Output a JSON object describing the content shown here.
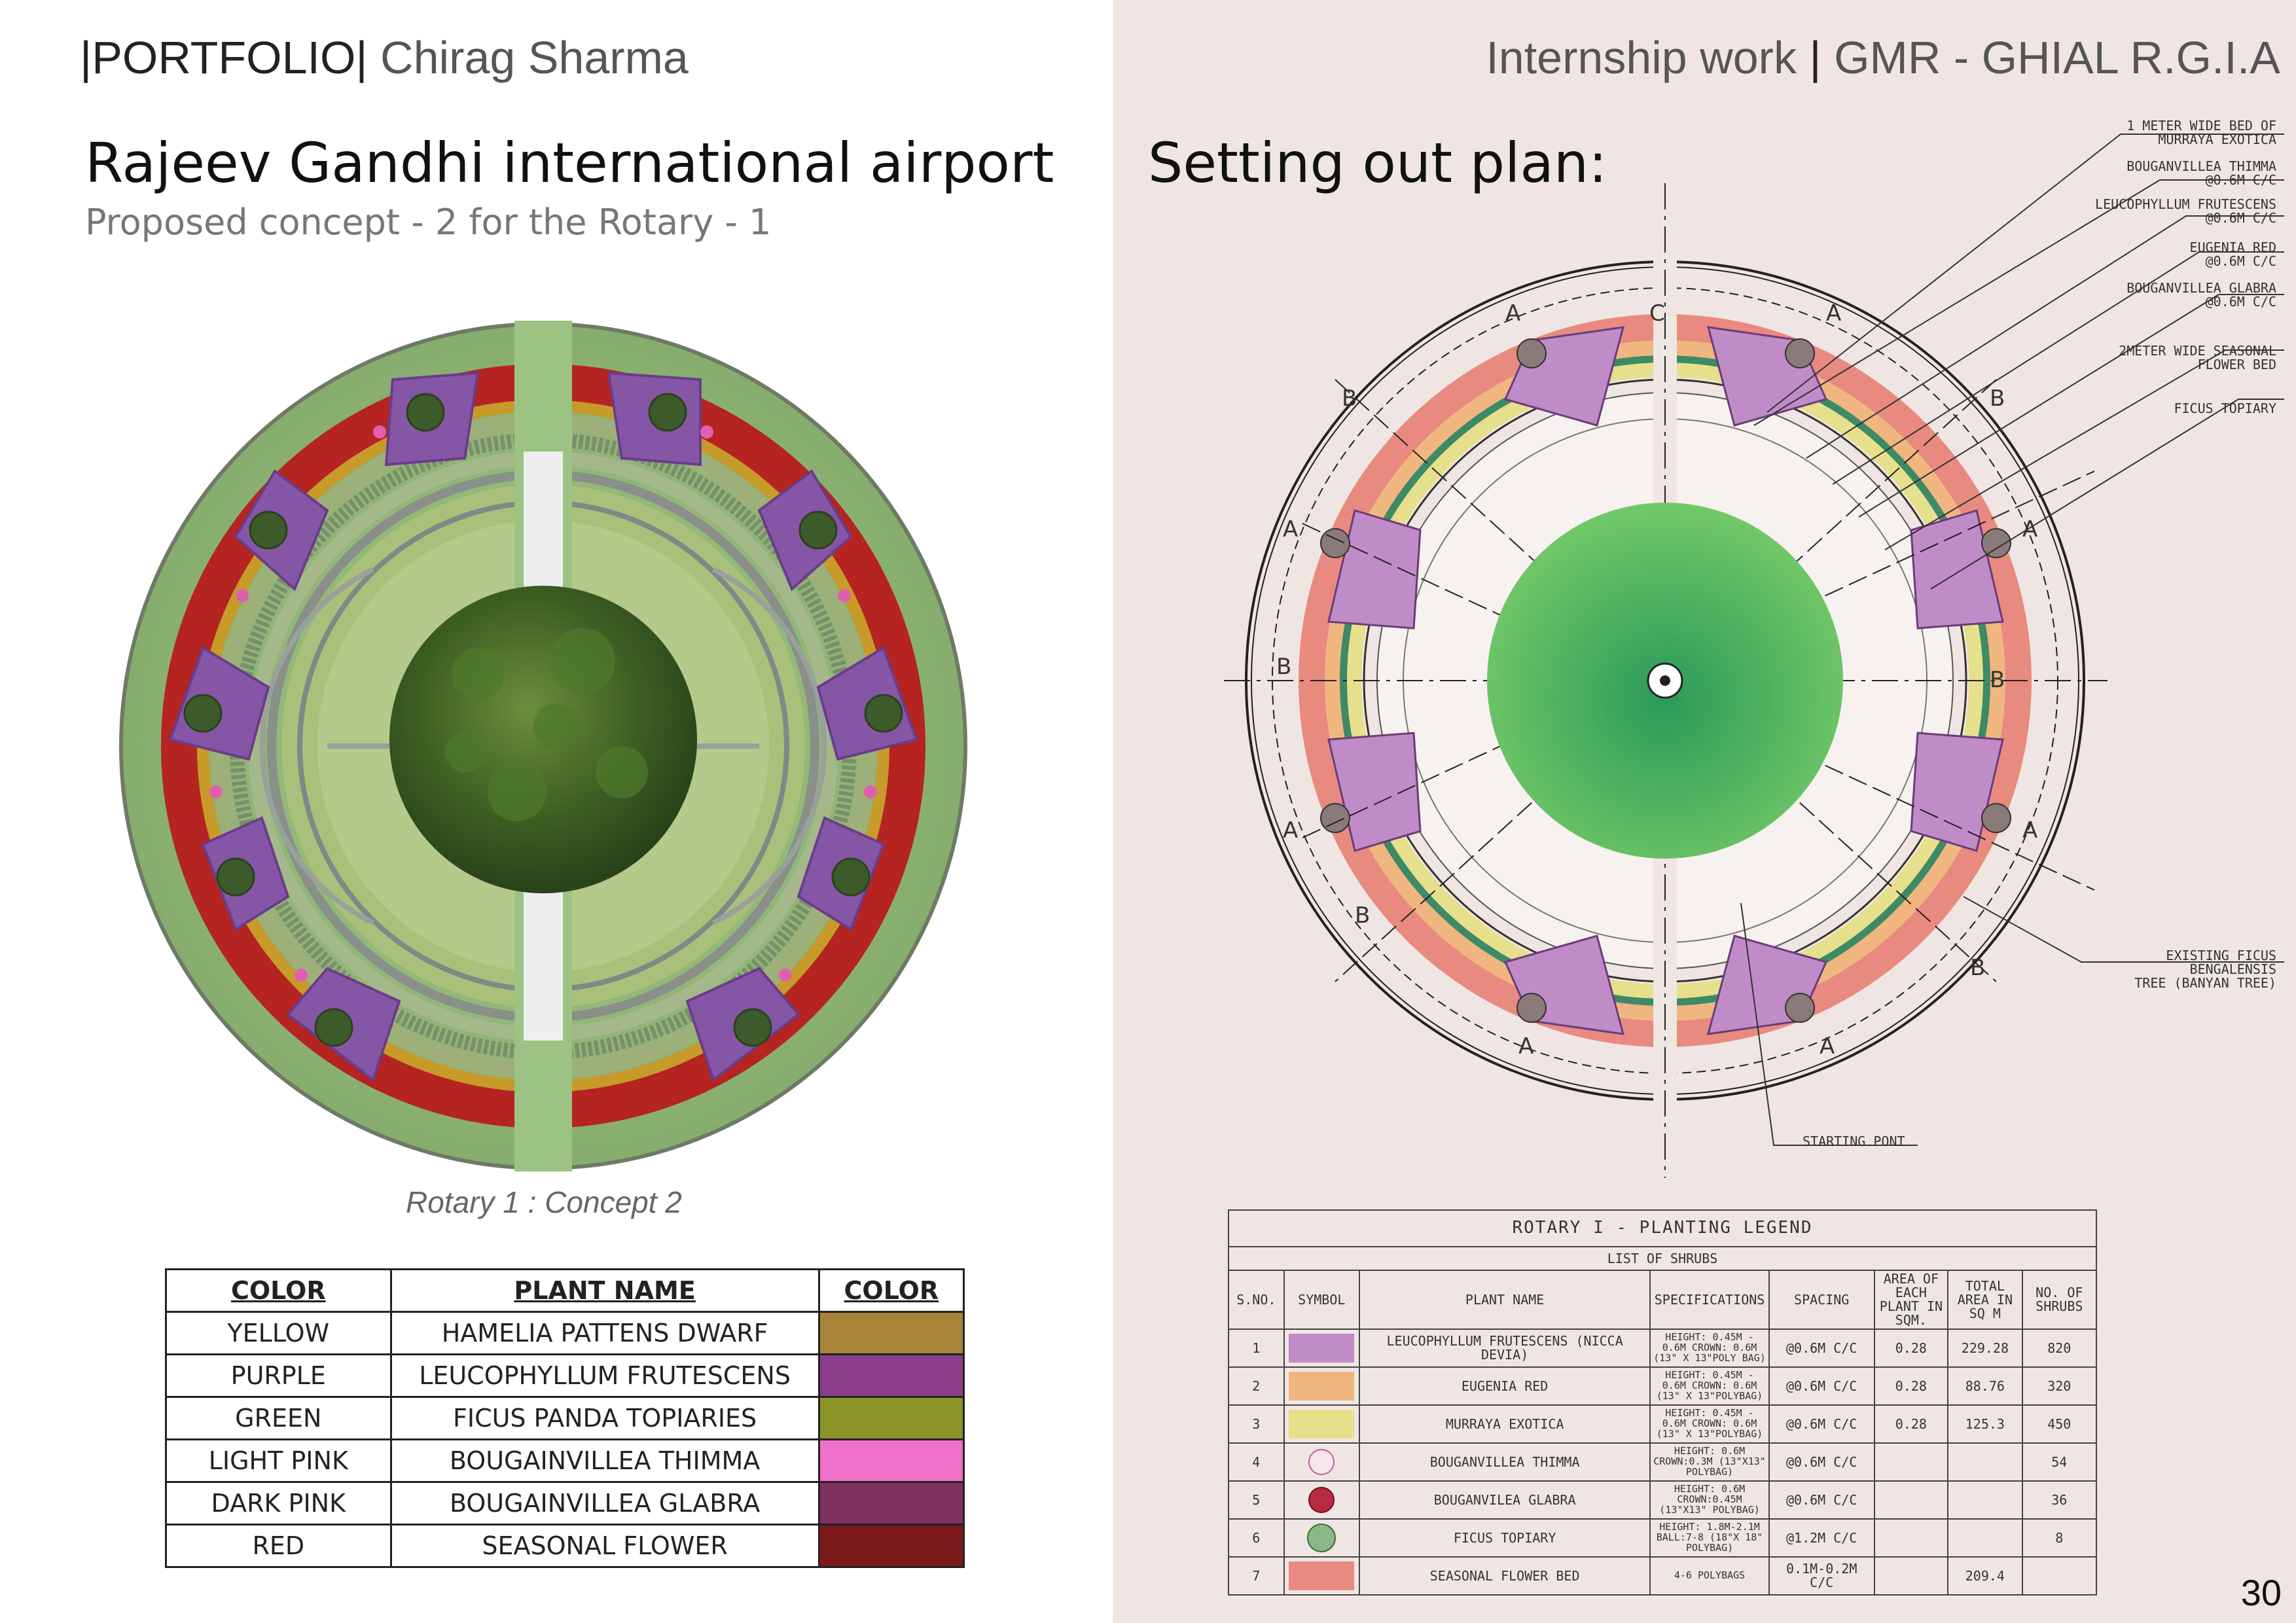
{
  "header_left": {
    "portfolio": "PORTFOLIO",
    "name": "Chirag Sharma"
  },
  "header_right": {
    "label": "Internship work",
    "org": "GMR - GHIAL R.G.I.A"
  },
  "left_page": {
    "title": "Rajeev Gandhi international airport",
    "subtitle": "Proposed concept - 2 for the Rotary - 1",
    "caption": "Rotary 1 : Concept 2"
  },
  "color_table": {
    "headers": [
      "COLOR",
      "PLANT NAME",
      "COLOR"
    ],
    "rows": [
      {
        "color": "YELLOW",
        "plant": "HAMELIA PATTENS DWARF",
        "swatch": "#a88438"
      },
      {
        "color": "PURPLE",
        "plant": "LEUCOPHYLLUM FRUTESCENS",
        "swatch": "#8a3e8c"
      },
      {
        "color": "GREEN",
        "plant": "FICUS PANDA TOPIARIES",
        "swatch": "#8c9428"
      },
      {
        "color": "LIGHT PINK",
        "plant": "BOUGAINVILLEA THIMMA",
        "swatch": "#ee70c8"
      },
      {
        "color": "DARK PINK",
        "plant": "BOUGAINVILLEA GLABRA",
        "swatch": "#7e3260"
      },
      {
        "color": "RED",
        "plant": "SEASONAL FLOWER",
        "swatch": "#7a1a1a"
      }
    ]
  },
  "right_page": {
    "title": "Setting out plan:"
  },
  "callouts": [
    {
      "line1": "1 METER WIDE BED OF",
      "line2": "MURRAYA EXOTICA"
    },
    {
      "line1": "BOUGANVILLEA THIMMA",
      "line2": "@0.6M C/C"
    },
    {
      "line1": "LEUCOPHYLLUM FRUTESCENS",
      "line2": "@0.6M  C/C"
    },
    {
      "line1": "EUGENIA RED",
      "line2": "@0.6M C/C"
    },
    {
      "line1": "BOUGANVILLEA GLABRA",
      "line2": "@0.6M C/C"
    },
    {
      "line1": "2METER WIDE SEASONAL",
      "line2": "FLOWER BED"
    },
    {
      "line1": "FICUS TOPIARY",
      "line2": ""
    }
  ],
  "callout_banyan": {
    "line1": "EXISTING FICUS",
    "line2": "BENGALENSIS",
    "line3": "TREE (BANYAN TREE)"
  },
  "callout_start": "STARTING PONT",
  "plan_labels": {
    "a": "A",
    "b": "B",
    "c": "C"
  },
  "legend": {
    "title": "ROTARY I -    PLANTING LEGEND",
    "subtitle": "LIST OF SHRUBS",
    "headers": [
      "S.NO.",
      "SYMBOL",
      "PLANT  NAME",
      "SPECIFICATIONS",
      "SPACING",
      "AREA OF EACH PLANT IN SQM.",
      "TOTAL AREA IN SQ M",
      "NO. OF SHRUBS"
    ],
    "rows": [
      {
        "sno": "1",
        "symbol": "leucophyllum-swatch",
        "plant": "LEUCOPHYLLUM FRUTESCENS (NICCA DEVIA)",
        "spec": "HEIGHT: 0.45M - 0.6M CROWN: 0.6M (13\" X 13\"POLY BAG)",
        "spacing": "@0.6M C/C",
        "area": "0.28",
        "total": "229.28",
        "count": "820"
      },
      {
        "sno": "2",
        "symbol": "eugenia-swatch",
        "plant": "EUGENIA RED",
        "spec": "HEIGHT: 0.45M - 0.6M CROWN: 0.6M (13\" X 13\"POLYBAG)",
        "spacing": "@0.6M C/C",
        "area": "0.28",
        "total": "88.76",
        "count": "320"
      },
      {
        "sno": "3",
        "symbol": "murraya-swatch",
        "plant": "MURRAYA EXOTICA",
        "spec": "HEIGHT: 0.45M - 0.6M CROWN: 0.6M (13\" X 13\"POLYBAG)",
        "spacing": "@0.6M C/C",
        "area": "0.28",
        "total": "125.3",
        "count": "450"
      },
      {
        "sno": "4",
        "symbol": "thimma-circle",
        "plant": "BOUGANVILLEA THIMMA",
        "spec": "HEIGHT: 0.6M CROWN:0.3M (13\"X13\" POLYBAG)",
        "spacing": "@0.6M C/C",
        "area": "",
        "total": "",
        "count": "54"
      },
      {
        "sno": "5",
        "symbol": "glabra-circle",
        "plant": "BOUGANVILEA GLABRA",
        "spec": "HEIGHT: 0.6M CROWN:0.45M (13\"X13\" POLYBAG)",
        "spacing": "@0.6M C/C",
        "area": "",
        "total": "",
        "count": "36"
      },
      {
        "sno": "6",
        "symbol": "ficus-circle",
        "plant": "FICUS TOPIARY",
        "spec": "HEIGHT: 1.8M-2.1M BALL:7-8 (18\"X 18\" POLYBAG)",
        "spacing": "@1.2M C/C",
        "area": "",
        "total": "",
        "count": "8"
      },
      {
        "sno": "7",
        "symbol": "seasonal-swatch",
        "plant": "SEASONAL FLOWER BED",
        "spec": "4-6 POLYBAGS",
        "spacing": "0.1M-0.2M C/C",
        "area": "",
        "total": "209.4",
        "count": ""
      }
    ]
  },
  "page_number": "30",
  "colors": {
    "right_bg": "#efe6e3",
    "lawn": "#8fb878",
    "red_bed": "#b8231e",
    "purple": "#8b5aa8",
    "plan_pink": "#e88a80",
    "plan_purple": "#c08cc8",
    "plan_yellow": "#e6e08c",
    "plan_green": "#56b868"
  }
}
